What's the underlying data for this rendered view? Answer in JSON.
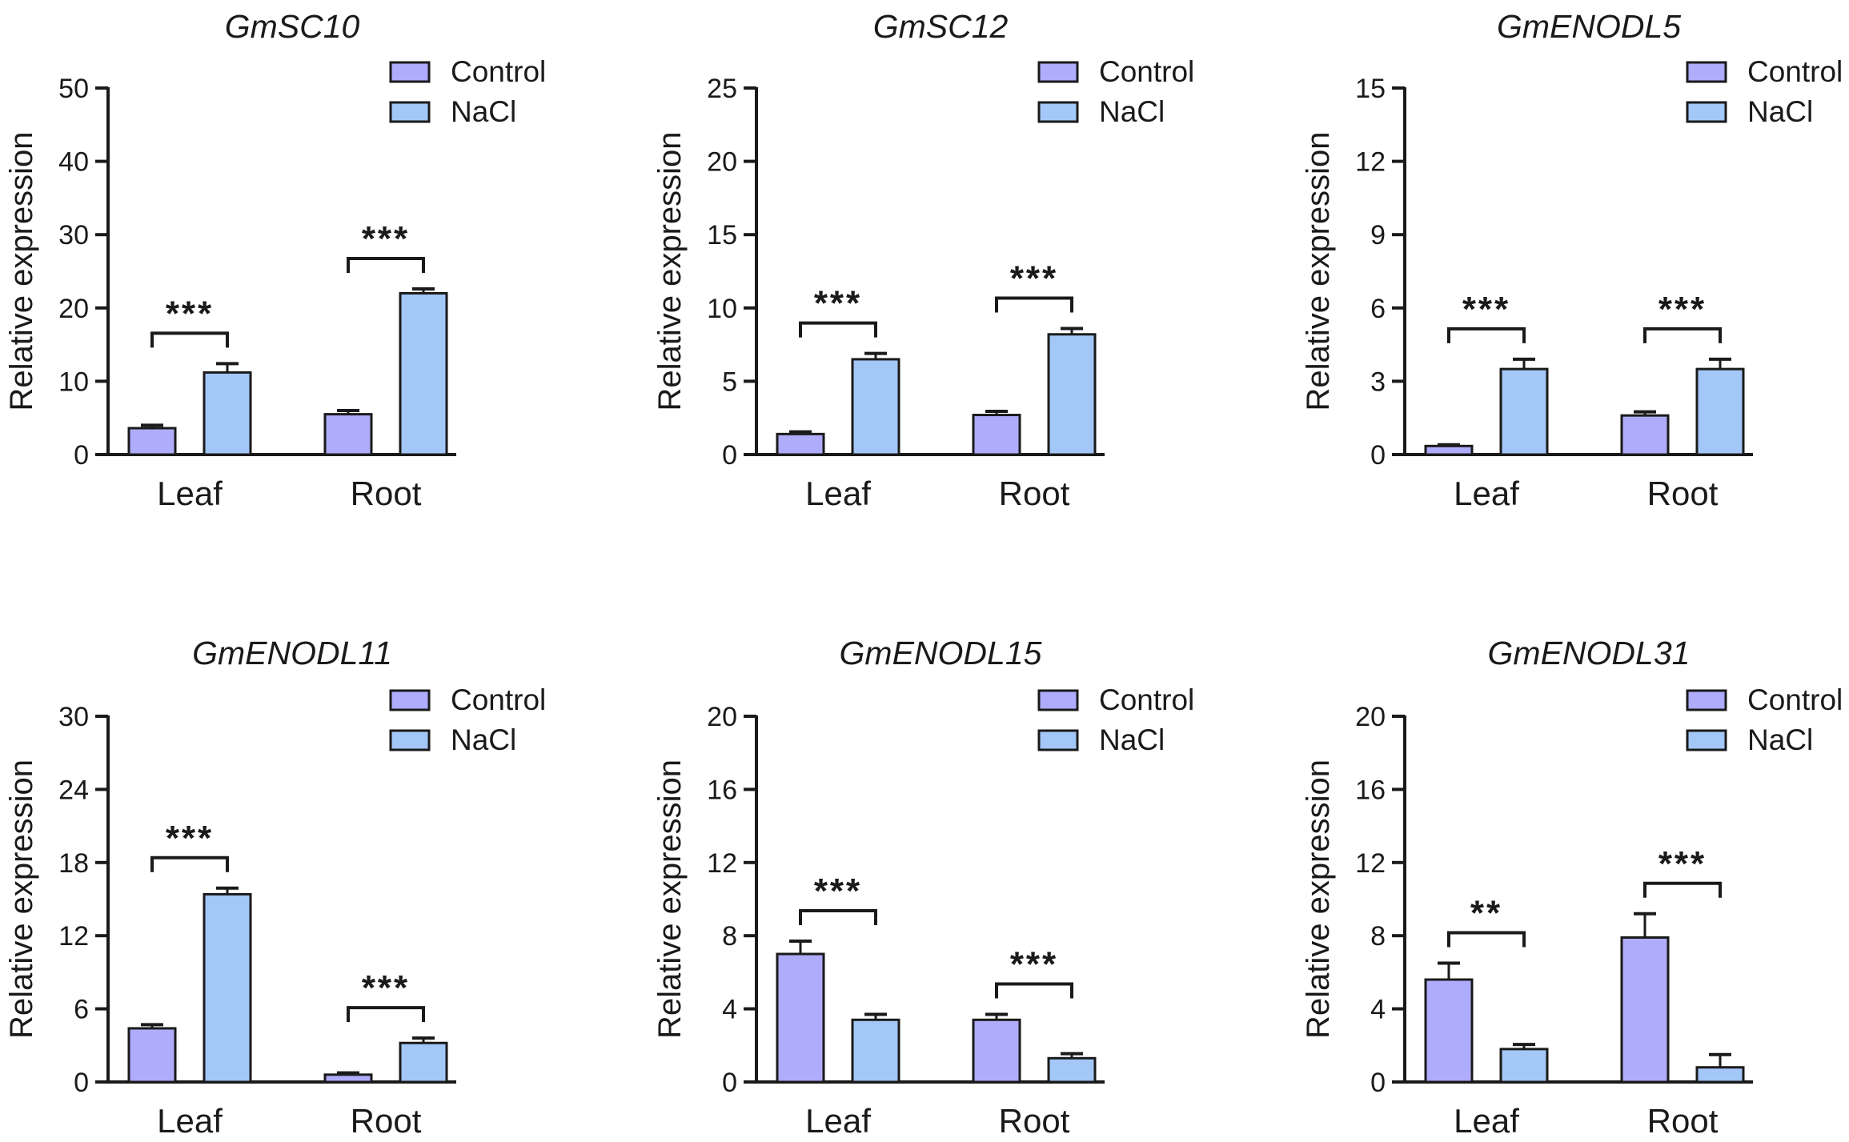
{
  "figure": {
    "legend": {
      "control": "Control",
      "nacl": "NaCl"
    },
    "colors": {
      "control": "#aeacfb",
      "nacl": "#a3c7f7",
      "stroke": "#1a1a1a"
    }
  },
  "chart_data": [
    {
      "type": "bar",
      "title": "GmSC10",
      "ylabel": "Relative expression",
      "xlabel": "",
      "categories": [
        "Leaf",
        "Root"
      ],
      "ylim": [
        0,
        50
      ],
      "yticks": [
        0,
        10,
        20,
        30,
        40,
        50
      ],
      "series": [
        {
          "name": "Control",
          "values": [
            3.6,
            5.5
          ],
          "errors": [
            0.4,
            0.5
          ]
        },
        {
          "name": "NaCl",
          "values": [
            11.2,
            22.0
          ],
          "errors": [
            1.2,
            0.6
          ]
        }
      ],
      "significance": [
        "***",
        "***"
      ],
      "legend": "top-right"
    },
    {
      "type": "bar",
      "title": "GmSC12",
      "ylabel": "Relative expression",
      "xlabel": "",
      "categories": [
        "Leaf",
        "Root"
      ],
      "ylim": [
        0,
        25
      ],
      "yticks": [
        0,
        5,
        10,
        15,
        20,
        25
      ],
      "series": [
        {
          "name": "Control",
          "values": [
            1.4,
            2.7
          ],
          "errors": [
            0.15,
            0.25
          ]
        },
        {
          "name": "NaCl",
          "values": [
            6.5,
            8.2
          ],
          "errors": [
            0.4,
            0.4
          ]
        }
      ],
      "significance": [
        "***",
        "***"
      ],
      "legend": "top-right"
    },
    {
      "type": "bar",
      "title": "GmENODL5",
      "ylabel": "Relative expression",
      "xlabel": "",
      "categories": [
        "Leaf",
        "Root"
      ],
      "ylim": [
        0,
        15
      ],
      "yticks": [
        0,
        3,
        6,
        9,
        12,
        15
      ],
      "series": [
        {
          "name": "Control",
          "values": [
            0.35,
            1.6
          ],
          "errors": [
            0.05,
            0.15
          ]
        },
        {
          "name": "NaCl",
          "values": [
            3.5,
            3.5
          ],
          "errors": [
            0.4,
            0.4
          ]
        }
      ],
      "significance": [
        "***",
        "***"
      ],
      "legend": "top-right"
    },
    {
      "type": "bar",
      "title": "GmENODL11",
      "ylabel": "Relative expression",
      "xlabel": "",
      "categories": [
        "Leaf",
        "Root"
      ],
      "ylim": [
        0,
        30
      ],
      "yticks": [
        0,
        6,
        12,
        18,
        24,
        30
      ],
      "series": [
        {
          "name": "Control",
          "values": [
            4.4,
            0.6
          ],
          "errors": [
            0.3,
            0.15
          ]
        },
        {
          "name": "NaCl",
          "values": [
            15.4,
            3.2
          ],
          "errors": [
            0.5,
            0.4
          ]
        }
      ],
      "significance": [
        "***",
        "***"
      ],
      "legend": "top-right"
    },
    {
      "type": "bar",
      "title": "GmENODL15",
      "ylabel": "Relative expression",
      "xlabel": "",
      "categories": [
        "Leaf",
        "Root"
      ],
      "ylim": [
        0,
        20
      ],
      "yticks": [
        0,
        4,
        8,
        12,
        16,
        20
      ],
      "series": [
        {
          "name": "Control",
          "values": [
            7.0,
            3.4
          ],
          "errors": [
            0.7,
            0.3
          ]
        },
        {
          "name": "NaCl",
          "values": [
            3.4,
            1.3
          ],
          "errors": [
            0.3,
            0.25
          ]
        }
      ],
      "significance": [
        "***",
        "***"
      ],
      "legend": "top-right"
    },
    {
      "type": "bar",
      "title": "GmENODL31",
      "ylabel": "Relative expression",
      "xlabel": "",
      "categories": [
        "Leaf",
        "Root"
      ],
      "ylim": [
        0,
        20
      ],
      "yticks": [
        0,
        4,
        8,
        12,
        16,
        20
      ],
      "series": [
        {
          "name": "Control",
          "values": [
            5.6,
            7.9
          ],
          "errors": [
            0.9,
            1.3
          ]
        },
        {
          "name": "NaCl",
          "values": [
            1.8,
            0.8
          ],
          "errors": [
            0.25,
            0.7
          ]
        }
      ],
      "significance": [
        "**",
        "***"
      ],
      "legend": "top-right"
    }
  ]
}
